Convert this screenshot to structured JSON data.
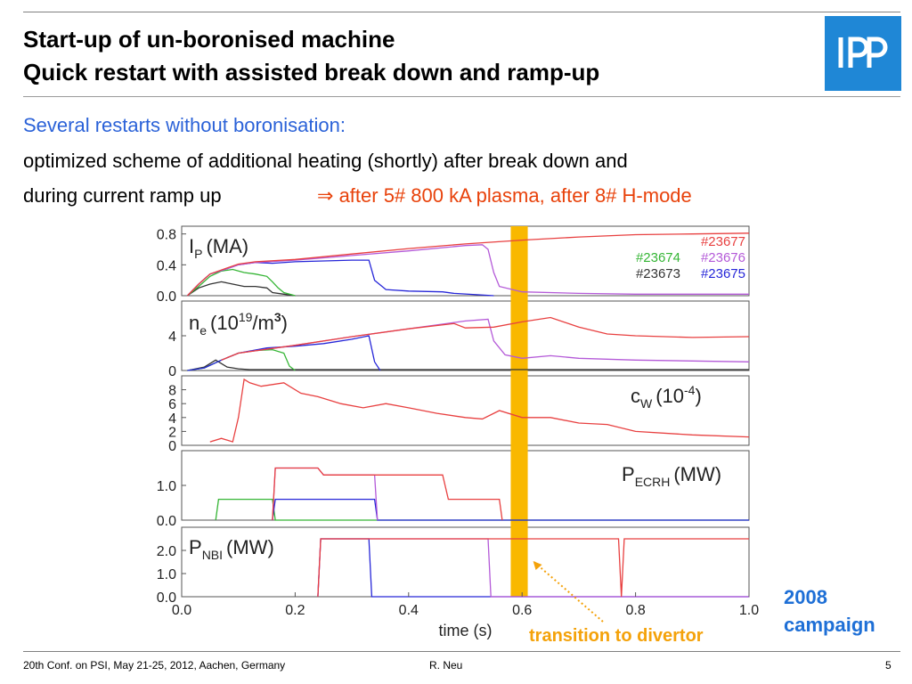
{
  "slide": {
    "title_line1": "Start-up of un-boronised machine",
    "title_line2": "Quick restart with assisted break down and ramp-up",
    "logo_text": "IPP",
    "subtitle": "Several restarts without boronisation:",
    "body_line1": "optimized scheme of additional heating (shortly) after break down and",
    "body_line2": "during current ramp up",
    "highlight_arrow": "⇒",
    "highlight_text": "after 5# 800 kA plasma, after 8# H-mode",
    "campaign_line1": "2008",
    "campaign_line2": "campaign",
    "annotation": "transition to divertor",
    "footer_left": "20th Conf. on  PSI, May 21-25, 2012, Aachen, Germany",
    "footer_center": "R. Neu",
    "footer_right": "5"
  },
  "colors": {
    "title": "#000000",
    "subtitle_blue": "#2b62d8",
    "highlight_red": "#e8420b",
    "logo_blue": "#1f87d6",
    "campaign_blue": "#1e6fd6",
    "annotation_orange": "#f4a20a",
    "divertor_band": "#f9b800",
    "s23673": "#333333",
    "s23674": "#35b535",
    "s23675": "#2626d8",
    "s23676": "#b45ad8",
    "s23677": "#e84040"
  },
  "chart_data": {
    "type": "line",
    "xlabel": "time (s)",
    "xlim": [
      0.0,
      1.0
    ],
    "x_ticks": [
      "0.0",
      "0.2",
      "0.4",
      "0.6",
      "0.8",
      "1.0"
    ],
    "divertor_band_x": [
      0.58,
      0.61
    ],
    "panels": [
      {
        "id": "ip",
        "label_main": "I",
        "label_sub": "P",
        "label_rest": "(MA)",
        "ylim": [
          0,
          0.9
        ],
        "y_ticks": [
          {
            "v": 0.8,
            "t": "0.8"
          },
          {
            "v": 0.4,
            "t": "0.4"
          },
          {
            "v": 0.0,
            "t": "0.0"
          }
        ],
        "legend": [
          {
            "name": "#23677",
            "color": "#e84040"
          },
          {
            "name": "#23674",
            "color": "#35b535"
          },
          {
            "name": "#23676",
            "color": "#b45ad8"
          },
          {
            "name": "#23673",
            "color": "#333333"
          },
          {
            "name": "#23675",
            "color": "#2626d8"
          }
        ],
        "series": [
          {
            "name": "#23673",
            "color": "#333333",
            "x": [
              0.01,
              0.03,
              0.05,
              0.07,
              0.09,
              0.11,
              0.13,
              0.15,
              0.16,
              0.18,
              0.2
            ],
            "y": [
              0.0,
              0.1,
              0.15,
              0.18,
              0.15,
              0.12,
              0.12,
              0.1,
              0.04,
              0.02,
              0.0
            ]
          },
          {
            "name": "#23674",
            "color": "#35b535",
            "x": [
              0.01,
              0.03,
              0.05,
              0.07,
              0.09,
              0.11,
              0.13,
              0.15,
              0.16,
              0.17,
              0.18,
              0.2
            ],
            "y": [
              0.0,
              0.12,
              0.25,
              0.32,
              0.34,
              0.3,
              0.28,
              0.25,
              0.18,
              0.1,
              0.04,
              0.0
            ]
          },
          {
            "name": "#23675",
            "color": "#2626d8",
            "x": [
              0.01,
              0.03,
              0.05,
              0.08,
              0.1,
              0.13,
              0.16,
              0.2,
              0.25,
              0.3,
              0.33,
              0.34,
              0.36,
              0.4,
              0.46,
              0.48,
              0.55
            ],
            "y": [
              0.0,
              0.15,
              0.28,
              0.35,
              0.4,
              0.43,
              0.42,
              0.44,
              0.45,
              0.46,
              0.46,
              0.2,
              0.08,
              0.06,
              0.05,
              0.03,
              0.0
            ]
          },
          {
            "name": "#23676",
            "color": "#b45ad8",
            "x": [
              0.01,
              0.03,
              0.05,
              0.08,
              0.1,
              0.13,
              0.2,
              0.3,
              0.4,
              0.5,
              0.53,
              0.54,
              0.55,
              0.56,
              0.6,
              0.7,
              0.8,
              0.9,
              1.0
            ],
            "y": [
              0.0,
              0.15,
              0.28,
              0.35,
              0.4,
              0.43,
              0.46,
              0.52,
              0.58,
              0.65,
              0.66,
              0.6,
              0.3,
              0.12,
              0.05,
              0.03,
              0.02,
              0.02,
              0.02
            ]
          },
          {
            "name": "#23677",
            "color": "#e84040",
            "x": [
              0.01,
              0.03,
              0.05,
              0.08,
              0.1,
              0.13,
              0.2,
              0.3,
              0.4,
              0.5,
              0.6,
              0.7,
              0.8,
              0.9,
              1.0
            ],
            "y": [
              0.0,
              0.15,
              0.28,
              0.36,
              0.41,
              0.44,
              0.47,
              0.54,
              0.61,
              0.67,
              0.72,
              0.76,
              0.79,
              0.8,
              0.81
            ]
          }
        ]
      },
      {
        "id": "ne",
        "label_main": "n",
        "label_sub": "e",
        "label_rest": "(10",
        "label_sup1": "19",
        "label_rest2": "/m",
        "label_sup2": "3",
        "label_rest3": ")",
        "ylim": [
          0,
          8
        ],
        "y_ticks": [
          {
            "v": 4,
            "t": "4"
          },
          {
            "v": 0,
            "t": "0"
          }
        ],
        "series": [
          {
            "name": "#23673",
            "color": "#333333",
            "x": [
              0.01,
              0.04,
              0.06,
              0.08,
              0.1,
              0.12,
              0.14,
              1.0
            ],
            "y": [
              0.0,
              0.4,
              1.2,
              0.4,
              0.2,
              0.1,
              0.1,
              0.1
            ]
          },
          {
            "name": "#23674",
            "color": "#35b535",
            "x": [
              0.01,
              0.04,
              0.07,
              0.1,
              0.13,
              0.16,
              0.18,
              0.19,
              0.2
            ],
            "y": [
              0.0,
              0.3,
              1.2,
              2.0,
              2.3,
              2.4,
              2.0,
              0.5,
              0.0
            ]
          },
          {
            "name": "#23675",
            "color": "#2626d8",
            "x": [
              0.01,
              0.04,
              0.07,
              0.1,
              0.15,
              0.2,
              0.25,
              0.3,
              0.33,
              0.34,
              0.35
            ],
            "y": [
              0.0,
              0.3,
              1.2,
              2.0,
              2.6,
              2.8,
              3.1,
              3.6,
              4.0,
              1.0,
              0.0
            ]
          },
          {
            "name": "#23676",
            "color": "#b45ad8",
            "x": [
              0.07,
              0.1,
              0.2,
              0.3,
              0.4,
              0.5,
              0.54,
              0.55,
              0.57,
              0.6,
              0.65,
              0.7,
              0.8,
              0.9,
              1.0
            ],
            "y": [
              1.2,
              2.0,
              2.9,
              3.9,
              4.8,
              5.7,
              5.9,
              3.4,
              1.8,
              1.4,
              1.7,
              1.4,
              1.2,
              1.1,
              1.0
            ]
          },
          {
            "name": "#23677",
            "color": "#e84040",
            "x": [
              0.07,
              0.1,
              0.2,
              0.3,
              0.4,
              0.48,
              0.5,
              0.55,
              0.6,
              0.65,
              0.7,
              0.75,
              0.8,
              0.9,
              1.0
            ],
            "y": [
              1.2,
              2.0,
              2.9,
              3.9,
              4.8,
              5.4,
              4.9,
              5.0,
              5.6,
              6.1,
              5.0,
              4.2,
              4.0,
              3.8,
              3.9
            ]
          }
        ]
      },
      {
        "id": "cw",
        "label_main": "c",
        "label_sub": "W",
        "label_rest": "(10",
        "label_sup1": "-4",
        "label_rest2": ")",
        "ylim": [
          0,
          10
        ],
        "y_ticks": [
          {
            "v": 8,
            "t": "8"
          },
          {
            "v": 6,
            "t": "6"
          },
          {
            "v": 4,
            "t": "4"
          },
          {
            "v": 2,
            "t": "2"
          },
          {
            "v": 0,
            "t": "0"
          }
        ],
        "series": [
          {
            "name": "#23677",
            "color": "#e84040",
            "x": [
              0.05,
              0.07,
              0.09,
              0.1,
              0.11,
              0.12,
              0.14,
              0.18,
              0.21,
              0.24,
              0.28,
              0.32,
              0.36,
              0.4,
              0.45,
              0.5,
              0.53,
              0.56,
              0.6,
              0.65,
              0.7,
              0.75,
              0.8,
              0.9,
              1.0
            ],
            "y": [
              0.5,
              1.0,
              0.5,
              4.0,
              9.5,
              9.0,
              8.5,
              9.0,
              7.5,
              7.0,
              6.0,
              5.4,
              6.0,
              5.4,
              4.6,
              4.0,
              3.8,
              5.0,
              4.0,
              4.0,
              3.2,
              3.0,
              2.0,
              1.5,
              1.2
            ]
          }
        ]
      },
      {
        "id": "pecrh",
        "label_main": "P",
        "label_sub": "ECRH",
        "label_rest": "(MW)",
        "ylim": [
          0,
          2.0
        ],
        "y_ticks": [
          {
            "v": 1.0,
            "t": "1.0"
          },
          {
            "v": 0.0,
            "t": "0.0"
          }
        ],
        "series": [
          {
            "name": "#23674",
            "color": "#35b535",
            "x": [
              0.06,
              0.065,
              0.16,
              0.165,
              1.0
            ],
            "y": [
              0.0,
              0.6,
              0.6,
              0.0,
              0.0
            ]
          },
          {
            "name": "#23675",
            "color": "#2626d8",
            "x": [
              0.16,
              0.165,
              0.33,
              0.34,
              0.345,
              1.0
            ],
            "y": [
              0.0,
              0.6,
              0.6,
              0.6,
              0.0,
              0.0
            ]
          },
          {
            "name": "#23676",
            "color": "#b45ad8",
            "x": [
              0.16,
              0.165,
              0.24,
              0.25,
              0.33,
              0.34,
              0.345
            ],
            "y": [
              0.0,
              1.5,
              1.5,
              1.3,
              1.3,
              1.3,
              0.0
            ]
          },
          {
            "name": "#23677",
            "color": "#e84040",
            "x": [
              0.16,
              0.165,
              0.24,
              0.25,
              0.46,
              0.47,
              0.55,
              0.56,
              0.565
            ],
            "y": [
              0.0,
              1.5,
              1.5,
              1.3,
              1.3,
              0.6,
              0.6,
              0.6,
              0.0
            ]
          }
        ]
      },
      {
        "id": "pnbi",
        "label_main": "P",
        "label_sub": "NBI",
        "label_rest": "(MW)",
        "ylim": [
          0,
          3.0
        ],
        "y_ticks": [
          {
            "v": 2.0,
            "t": "2.0"
          },
          {
            "v": 1.0,
            "t": "1.0"
          },
          {
            "v": 0.0,
            "t": "0.0"
          }
        ],
        "series": [
          {
            "name": "#23675",
            "color": "#2626d8",
            "x": [
              0.24,
              0.245,
              0.33,
              0.335,
              1.0
            ],
            "y": [
              0.0,
              2.5,
              2.5,
              0.0,
              0.0
            ]
          },
          {
            "name": "#23676",
            "color": "#b45ad8",
            "x": [
              0.24,
              0.245,
              0.54,
              0.545,
              1.0
            ],
            "y": [
              0.0,
              2.5,
              2.5,
              0.0,
              0.0
            ]
          },
          {
            "name": "#23677",
            "color": "#e84040",
            "x": [
              0.24,
              0.245,
              0.77,
              0.775,
              0.78,
              1.0
            ],
            "y": [
              0.0,
              2.5,
              2.5,
              0.0,
              2.5,
              2.5
            ]
          }
        ]
      }
    ]
  }
}
